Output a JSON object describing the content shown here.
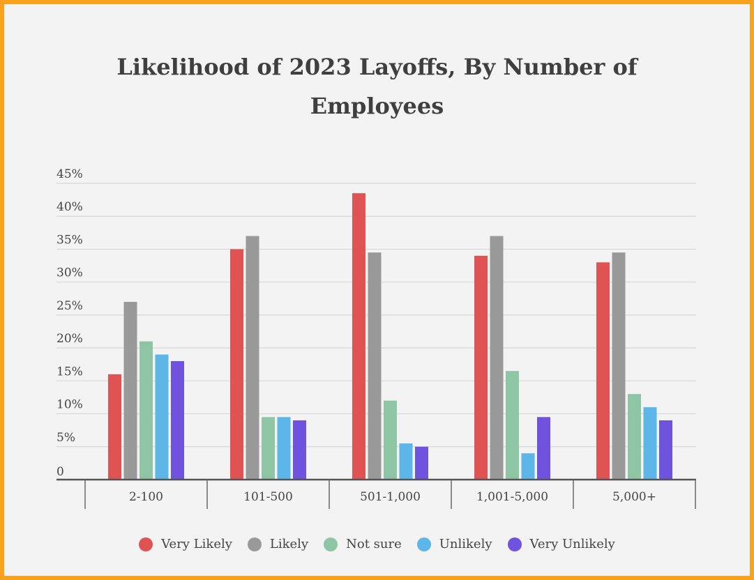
{
  "chart_data": {
    "type": "bar",
    "title_lines": [
      "Likelihood of 2023 Layoffs, By Number of",
      "Employees"
    ],
    "categories": [
      "2-100",
      "101-500",
      "501-1,000",
      "1,001-5,000",
      "5,000+"
    ],
    "series": [
      {
        "name": "Very Likely",
        "color": "#e05353",
        "values": [
          16,
          35,
          43.5,
          34,
          33
        ]
      },
      {
        "name": "Likely",
        "color": "#999999",
        "values": [
          27,
          37,
          34.5,
          37,
          34.5
        ]
      },
      {
        "name": "Not sure",
        "color": "#8ec5a4",
        "values": [
          21,
          9.5,
          12,
          16.5,
          13
        ]
      },
      {
        "name": "Unlikely",
        "color": "#5cb7e8",
        "values": [
          19,
          9.5,
          5.5,
          4,
          11
        ]
      },
      {
        "name": "Very Unlikely",
        "color": "#6f52dd",
        "values": [
          18,
          9,
          5,
          9.5,
          9
        ]
      }
    ],
    "ylim": [
      0,
      45
    ],
    "yticks": [
      {
        "value": 0,
        "label": "0"
      },
      {
        "value": 5,
        "label": "5%"
      },
      {
        "value": 10,
        "label": "10%"
      },
      {
        "value": 15,
        "label": "15%"
      },
      {
        "value": 20,
        "label": "20%"
      },
      {
        "value": 25,
        "label": "25%"
      },
      {
        "value": 30,
        "label": "30%"
      },
      {
        "value": 35,
        "label": "35%"
      },
      {
        "value": 40,
        "label": "40%"
      },
      {
        "value": 45,
        "label": "45%"
      }
    ],
    "grid": true,
    "legend_position": "bottom"
  }
}
